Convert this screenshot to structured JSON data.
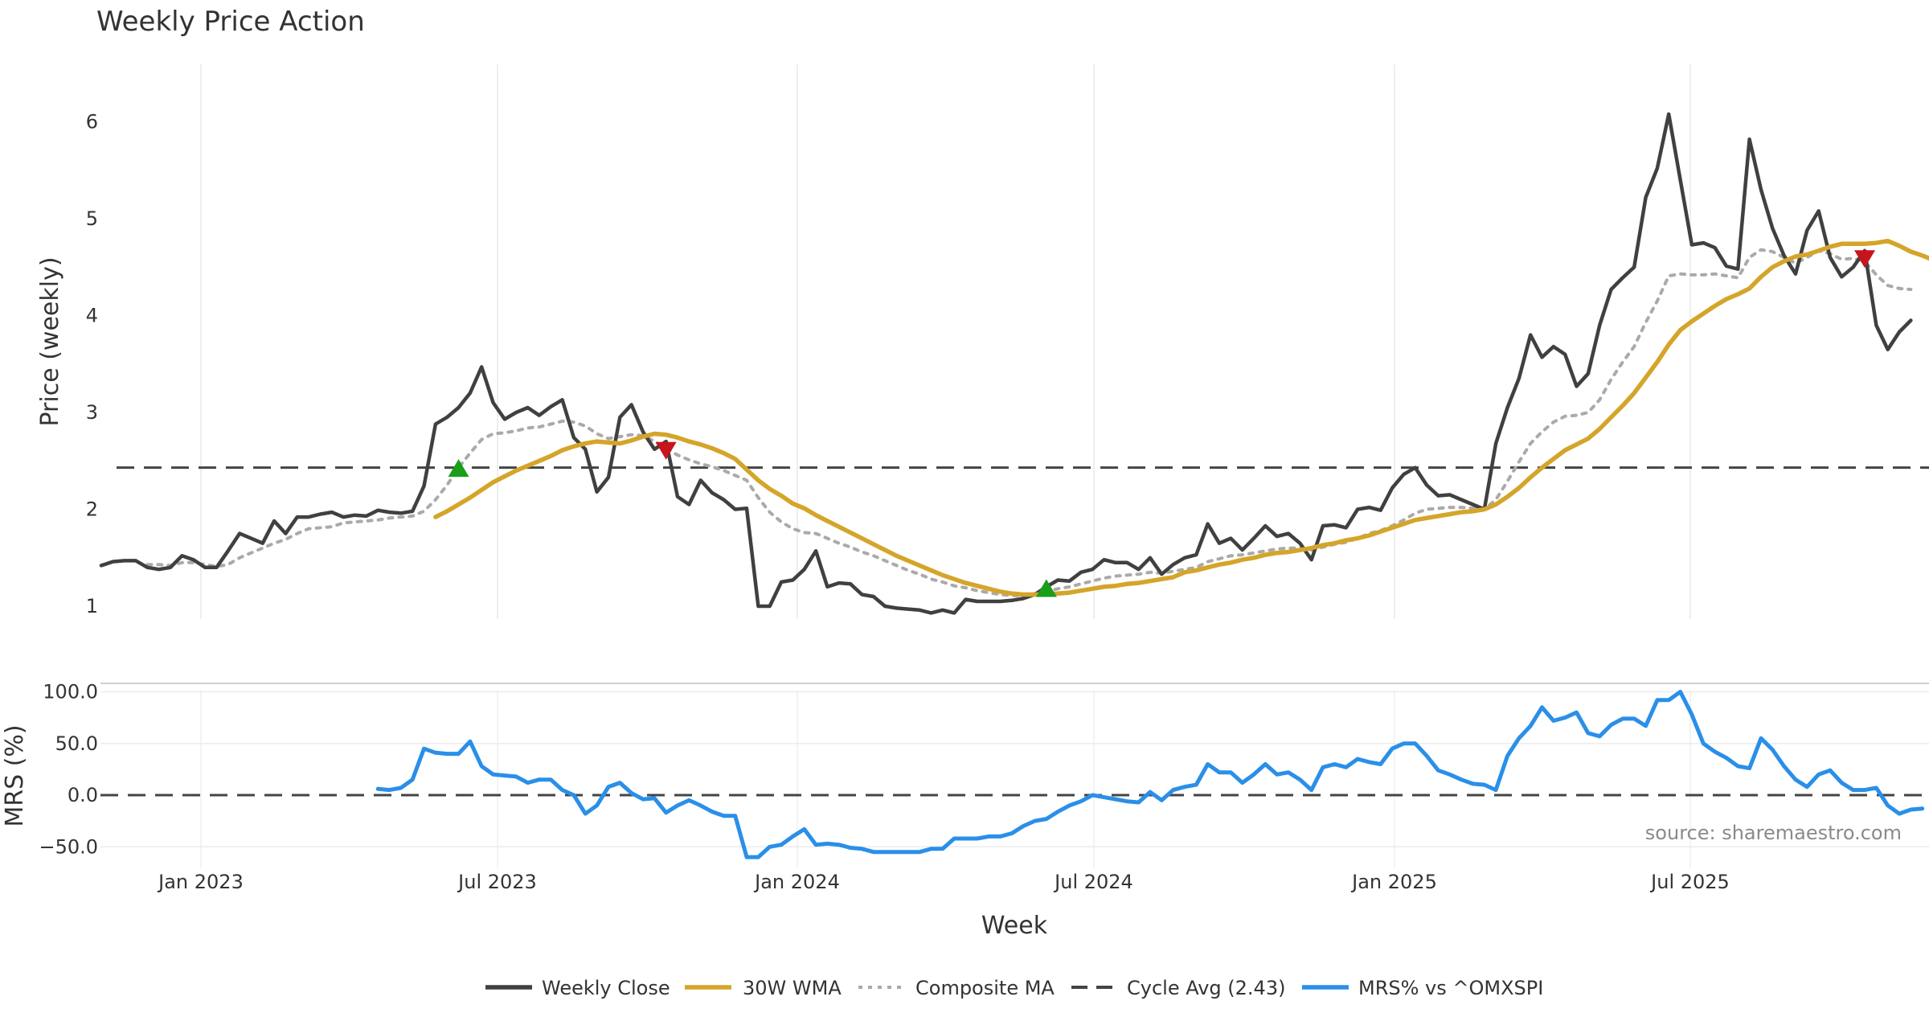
{
  "chart_data": {
    "type": "line",
    "title": "Weekly Price Action",
    "xlabel": "Week",
    "x_ticks": [
      "Jan 2023",
      "Jul 2023",
      "Jan 2024",
      "Jul 2024",
      "Jan 2025",
      "Jul 2025"
    ],
    "source_note": "source: sharemaestro.com",
    "grid": true,
    "legend_position": "bottom-center",
    "start_date": "2022-10-31",
    "price_panel": {
      "ylabel": "Price (weekly)",
      "ylim": [
        0.6,
        6.4
      ],
      "y_ticks": [
        "1",
        "2",
        "3",
        "4",
        "5",
        "6"
      ],
      "cycle_avg": 2.43,
      "series": [
        {
          "name": "Weekly Close",
          "color": "#404040",
          "start_index": 0,
          "values": [
            1.42,
            1.46,
            1.47,
            1.47,
            1.4,
            1.38,
            1.4,
            1.52,
            1.48,
            1.4,
            1.4,
            1.57,
            1.75,
            1.7,
            1.65,
            1.88,
            1.75,
            1.92,
            1.92,
            1.95,
            1.97,
            1.92,
            1.94,
            1.93,
            1.99,
            1.97,
            1.96,
            1.98,
            2.24,
            2.88,
            2.95,
            3.05,
            3.2,
            3.47,
            3.1,
            2.93,
            3.0,
            3.05,
            2.97,
            3.06,
            3.13,
            2.74,
            2.62,
            2.18,
            2.33,
            2.95,
            3.08,
            2.8,
            2.62,
            2.7,
            2.13,
            2.05,
            2.3,
            2.17,
            2.1,
            2.0,
            2.01,
            1.0,
            1.0,
            1.25,
            1.27,
            1.38,
            1.57,
            1.2,
            1.24,
            1.23,
            1.12,
            1.1,
            1.0,
            0.98,
            0.97,
            0.96,
            0.93,
            0.96,
            0.93,
            1.07,
            1.05,
            1.05,
            1.05,
            1.06,
            1.08,
            1.12,
            1.2,
            1.27,
            1.26,
            1.35,
            1.38,
            1.48,
            1.45,
            1.45,
            1.38,
            1.5,
            1.33,
            1.43,
            1.5,
            1.53,
            1.85,
            1.65,
            1.7,
            1.58,
            1.7,
            1.83,
            1.72,
            1.75,
            1.65,
            1.48,
            1.83,
            1.84,
            1.81,
            2.0,
            2.02,
            1.99,
            2.22,
            2.36,
            2.43,
            2.25,
            2.14,
            2.15,
            2.1,
            2.05,
            2.0,
            2.68,
            3.05,
            3.35,
            3.8,
            3.57,
            3.68,
            3.6,
            3.27,
            3.4,
            3.9,
            4.27,
            4.39,
            4.5,
            5.22,
            5.52,
            6.08,
            5.4,
            4.73,
            4.75,
            4.7,
            4.51,
            4.48,
            5.82,
            5.3,
            4.9,
            4.62,
            4.43,
            4.88,
            5.08,
            4.6,
            4.4,
            4.5,
            4.67,
            3.9,
            3.65,
            3.83,
            3.95
          ]
        },
        {
          "name": "30W WMA",
          "color": "#d4a52a",
          "start_index": 29,
          "values": [
            1.92,
            1.98,
            2.05,
            2.12,
            2.2,
            2.28,
            2.34,
            2.4,
            2.45,
            2.5,
            2.55,
            2.61,
            2.65,
            2.68,
            2.7,
            2.69,
            2.68,
            2.71,
            2.75,
            2.78,
            2.77,
            2.74,
            2.7,
            2.67,
            2.63,
            2.58,
            2.52,
            2.41,
            2.3,
            2.21,
            2.14,
            2.06,
            2.01,
            1.94,
            1.88,
            1.82,
            1.76,
            1.7,
            1.64,
            1.58,
            1.52,
            1.47,
            1.42,
            1.37,
            1.32,
            1.28,
            1.24,
            1.21,
            1.18,
            1.15,
            1.13,
            1.12,
            1.12,
            1.12,
            1.13,
            1.14,
            1.16,
            1.18,
            1.2,
            1.21,
            1.23,
            1.24,
            1.26,
            1.28,
            1.3,
            1.35,
            1.37,
            1.4,
            1.43,
            1.45,
            1.48,
            1.5,
            1.53,
            1.55,
            1.56,
            1.58,
            1.6,
            1.63,
            1.65,
            1.68,
            1.7,
            1.73,
            1.77,
            1.81,
            1.85,
            1.89,
            1.91,
            1.93,
            1.95,
            1.97,
            1.98,
            2.0,
            2.05,
            2.13,
            2.22,
            2.33,
            2.43,
            2.52,
            2.61,
            2.67,
            2.73,
            2.83,
            2.95,
            3.07,
            3.2,
            3.36,
            3.52,
            3.7,
            3.85,
            3.94,
            4.02,
            4.1,
            4.17,
            4.22,
            4.28,
            4.4,
            4.5,
            4.56,
            4.61,
            4.63,
            4.67,
            4.71,
            4.74,
            4.74,
            4.74,
            4.75,
            4.77,
            4.72,
            4.66,
            4.62,
            4.57
          ]
        },
        {
          "name": "Composite MA",
          "color": "#aaaaaa",
          "start_index": 0,
          "values": [
            null,
            null,
            null,
            null,
            1.43,
            1.43,
            1.42,
            1.45,
            1.45,
            1.43,
            1.41,
            1.43,
            1.5,
            1.55,
            1.6,
            1.65,
            1.69,
            1.75,
            1.8,
            1.81,
            1.82,
            1.86,
            1.87,
            1.88,
            1.89,
            1.91,
            1.92,
            1.93,
            1.98,
            2.1,
            2.25,
            2.43,
            2.58,
            2.72,
            2.78,
            2.79,
            2.81,
            2.84,
            2.85,
            2.88,
            2.91,
            2.9,
            2.86,
            2.78,
            2.73,
            2.75,
            2.77,
            2.76,
            2.7,
            2.63,
            2.56,
            2.51,
            2.47,
            2.44,
            2.4,
            2.35,
            2.3,
            2.12,
            1.97,
            1.87,
            1.8,
            1.76,
            1.75,
            1.7,
            1.65,
            1.61,
            1.56,
            1.52,
            1.47,
            1.42,
            1.37,
            1.33,
            1.28,
            1.25,
            1.21,
            1.19,
            1.16,
            1.14,
            1.12,
            1.11,
            1.11,
            1.13,
            1.15,
            1.18,
            1.2,
            1.23,
            1.26,
            1.29,
            1.31,
            1.32,
            1.33,
            1.35,
            1.34,
            1.36,
            1.38,
            1.4,
            1.46,
            1.49,
            1.52,
            1.53,
            1.55,
            1.57,
            1.59,
            1.6,
            1.6,
            1.58,
            1.61,
            1.64,
            1.66,
            1.7,
            1.75,
            1.78,
            1.83,
            1.89,
            1.96,
            2.0,
            2.01,
            2.02,
            2.02,
            2.01,
            2.0,
            2.1,
            2.29,
            2.49,
            2.68,
            2.8,
            2.9,
            2.96,
            2.97,
            3.0,
            3.13,
            3.34,
            3.52,
            3.68,
            3.93,
            4.15,
            4.41,
            4.43,
            4.42,
            4.42,
            4.43,
            4.41,
            4.39,
            4.6,
            4.68,
            4.66,
            4.6,
            4.54,
            4.6,
            4.67,
            4.64,
            4.58,
            4.59,
            4.56,
            4.42,
            4.31,
            4.28,
            4.27
          ]
        }
      ],
      "signals": {
        "buy": [
          {
            "index": 31,
            "value": 2.41
          },
          {
            "index": 82,
            "value": 1.17
          }
        ],
        "sell": [
          {
            "index": 49,
            "value": 2.62
          },
          {
            "index": 153,
            "value": 4.6
          }
        ],
        "buy_color": "#1a9e1a",
        "sell_color": "#c8141e"
      }
    },
    "mrs_panel": {
      "ylabel": "MRS (%)",
      "ylim": [
        -62,
        105
      ],
      "y_ticks": [
        "100.0",
        "50.0",
        "0.0",
        "−50.0"
      ],
      "series": [
        {
          "name": "MRS% vs ^OMXSPI",
          "color": "#2a8fe8",
          "start_index": 24,
          "values": [
            6,
            5,
            7,
            15,
            45,
            41,
            40,
            40,
            52,
            28,
            20,
            19,
            18,
            12,
            15,
            15,
            5,
            0,
            -18,
            -10,
            8,
            12,
            2,
            -4,
            -3,
            -17,
            -10,
            -5,
            -10,
            -16,
            -20,
            -20,
            -60,
            -60,
            -50,
            -48,
            -40,
            -33,
            -48,
            -47,
            -48,
            -51,
            -52,
            -55,
            -55,
            -55,
            -55,
            -55,
            -52,
            -52,
            -42,
            -42,
            -42,
            -40,
            -40,
            -37,
            -30,
            -25,
            -23,
            -16,
            -10,
            -6,
            0,
            -2,
            -4,
            -6,
            -7,
            3,
            -5,
            5,
            8,
            10,
            30,
            22,
            22,
            12,
            20,
            30,
            20,
            22,
            15,
            5,
            27,
            30,
            27,
            35,
            32,
            30,
            45,
            50,
            50,
            38,
            24,
            20,
            15,
            11,
            10,
            5,
            38,
            55,
            67,
            85,
            72,
            75,
            80,
            60,
            57,
            68,
            74,
            74,
            67,
            92,
            92,
            100,
            78,
            50,
            42,
            36,
            28,
            26,
            55,
            44,
            28,
            15,
            8,
            20,
            24,
            12,
            5,
            5,
            7,
            -10,
            -18,
            -14,
            -13
          ]
        }
      ]
    },
    "legend": [
      {
        "name": "Weekly Close",
        "color": "#404040",
        "style": "solid"
      },
      {
        "name": "30W WMA",
        "color": "#d4a52a",
        "style": "solid"
      },
      {
        "name": "Composite MA",
        "color": "#aaaaaa",
        "style": "dotted"
      },
      {
        "name": "Cycle Avg (2.43)",
        "color": "#444444",
        "style": "dashed"
      },
      {
        "name": "MRS% vs ^OMXSPI",
        "color": "#2a8fe8",
        "style": "solid"
      }
    ]
  }
}
